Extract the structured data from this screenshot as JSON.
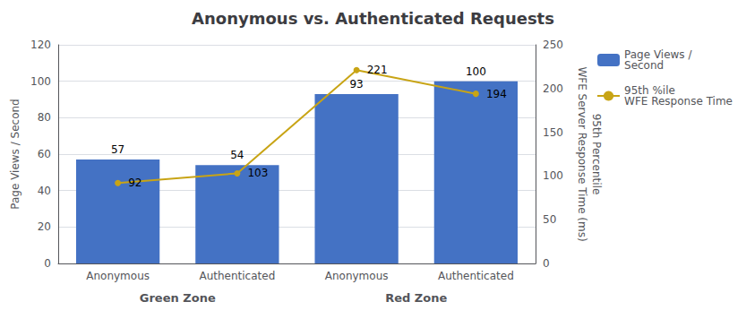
{
  "chart_data": {
    "type": "bar",
    "title": "Anonymous vs. Authenticated Requests",
    "categories": [
      "Anonymous",
      "Authenticated",
      "Anonymous",
      "Authenticated"
    ],
    "group_labels": [
      "Green Zone",
      "Red Zone"
    ],
    "ylabel": "Page Views / Second",
    "y2label": [
      "95th Percentile",
      "WFE Server Response Time (ms)"
    ],
    "series": [
      {
        "name": "Page Views /\nSecond",
        "type": "bar",
        "color": "#4472C4",
        "values": [
          57,
          54,
          93,
          100
        ]
      },
      {
        "name": "95th %ile\nWFE Response Time",
        "type": "line",
        "color": "#C8A415",
        "marker": "circle",
        "axis": "y2",
        "values": [
          92,
          103,
          221,
          194
        ]
      }
    ],
    "ylim": [
      0,
      120
    ],
    "yticks": [
      0,
      20,
      40,
      60,
      80,
      100,
      120
    ],
    "y2lim": [
      0,
      250
    ],
    "y2ticks": [
      0,
      50,
      100,
      150,
      200,
      250
    ],
    "grid": true,
    "data_labels": true,
    "legend": "right"
  }
}
